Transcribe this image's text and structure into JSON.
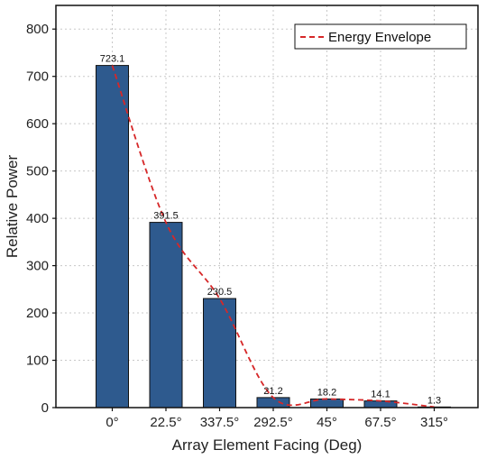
{
  "chart_data": {
    "type": "bar",
    "title": "",
    "xlabel": "Array Element Facing (Deg)",
    "ylabel": "Relative Power",
    "categories": [
      "0°",
      "22.5°",
      "337.5°",
      "292.5°",
      "45°",
      "67.5°",
      "315°"
    ],
    "values": [
      723.1,
      391.5,
      230.5,
      21.2,
      18.2,
      14.1,
      1.3
    ],
    "value_labels": [
      "723.1",
      "391.5",
      "230.5",
      "21.2",
      "18.2",
      "14.1",
      "1.3"
    ],
    "ylim": [
      0,
      850
    ],
    "yticks": [
      0,
      100,
      200,
      300,
      400,
      500,
      600,
      700,
      800
    ],
    "ytick_labels": [
      "0",
      "100",
      "200",
      "300",
      "400",
      "500",
      "600",
      "700",
      "800"
    ],
    "grid": true,
    "legend_position": "top-right",
    "envelope": {
      "name": "Energy Envelope",
      "style": "dashed",
      "color": "#d62728",
      "values": [
        723.1,
        391.5,
        230.5,
        21.2,
        18.2,
        14.1,
        1.3
      ]
    },
    "bar_color": "#2e5a8e",
    "bar_edge_color": "#111111"
  }
}
